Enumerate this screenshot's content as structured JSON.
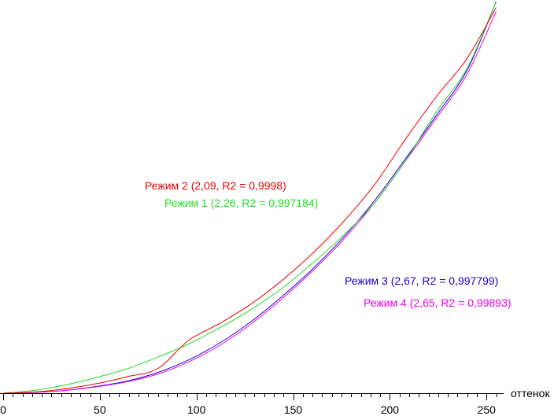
{
  "chart_data": {
    "type": "line",
    "xlabel": "оттенок",
    "ylabel": "",
    "xlim": [
      0,
      255
    ],
    "ylim": [
      0,
      1
    ],
    "grid": false,
    "legend": "inline",
    "x_ticks": [
      0,
      50,
      100,
      150,
      200,
      250
    ],
    "x": [
      0,
      16,
      32,
      48,
      64,
      80,
      96,
      112,
      128,
      144,
      160,
      176,
      192,
      208,
      224,
      240,
      255
    ],
    "series": [
      {
        "name": "Режим 2 (2,09, R2 = 0,9998)",
        "color": "#ee0000",
        "values": [
          0.0,
          0.003,
          0.011,
          0.024,
          0.042,
          0.063,
          0.135,
          0.178,
          0.227,
          0.287,
          0.357,
          0.438,
          0.532,
          0.648,
          0.757,
          0.855,
          0.985
        ]
      },
      {
        "name": "Режим 1 (2,26, R2 = 0,997184)",
        "color": "#22dd22",
        "values": [
          0.0,
          0.007,
          0.021,
          0.04,
          0.062,
          0.092,
          0.126,
          0.167,
          0.213,
          0.267,
          0.332,
          0.403,
          0.485,
          0.593,
          0.718,
          0.83,
          1.0
        ]
      },
      {
        "name": "Режим 3 (2,67, R2 = 0,997799)",
        "color": "#1a00cc",
        "values": [
          0.0,
          0.002,
          0.007,
          0.017,
          0.031,
          0.053,
          0.085,
          0.128,
          0.182,
          0.246,
          0.317,
          0.398,
          0.491,
          0.598,
          0.709,
          0.825,
          1.0
        ]
      },
      {
        "name": "Режим 4 (2,65, R2 = 0,99893)",
        "color": "#ee00ee",
        "values": [
          0.0,
          0.002,
          0.007,
          0.016,
          0.029,
          0.049,
          0.08,
          0.122,
          0.176,
          0.24,
          0.312,
          0.392,
          0.485,
          0.592,
          0.702,
          0.815,
          0.975
        ]
      }
    ]
  }
}
